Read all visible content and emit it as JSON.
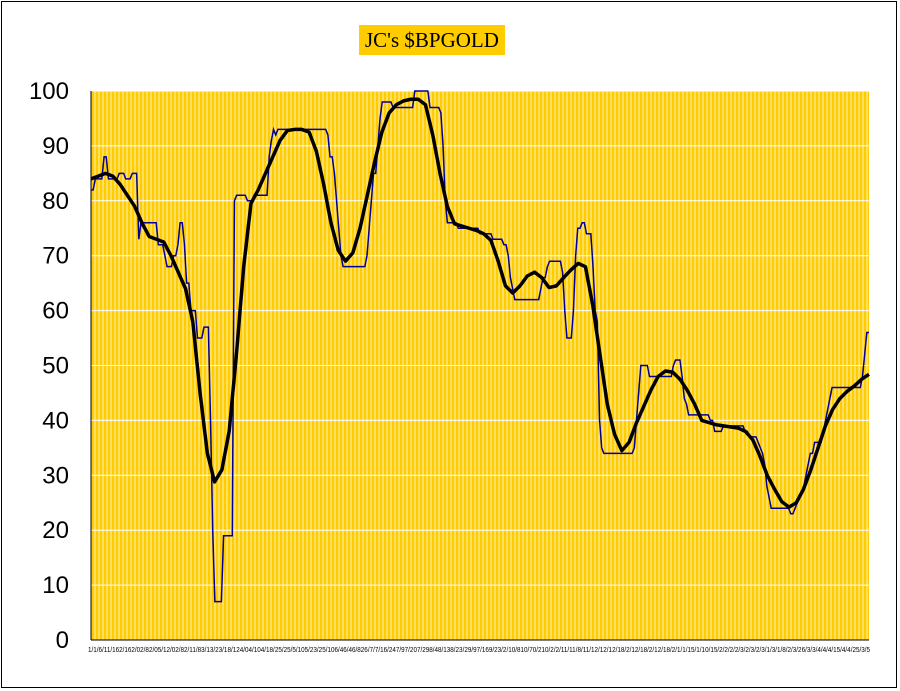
{
  "chart_data": {
    "type": "line",
    "title": "JC's $BPGOLD",
    "xlabel": "",
    "ylabel": "",
    "ylim": [
      0,
      100
    ],
    "yticks": [
      0,
      10,
      20,
      30,
      40,
      50,
      60,
      70,
      80,
      90,
      100
    ],
    "xtick_text": "1/1/6/11/162/162/02/82/05/12/02/82/11/83/13/23/18/124/04/104/18/25/25/5/105/23/25/106/46/46/826/7/7/16/247/97/207/298/48/138/23/29/97/169/23/2/10/810/70/210/2/2/11/11/8/11/12/12/12/18/2/12/18/2/12/18/2/1/1/15/1/10/15/2/2/2/2/3/2/3/2/3/1/3/1/8/2/3/26/3/3/4/4/4/15/4/4/25/3/5",
    "grid": true,
    "legend": "none",
    "colors": {
      "background": "#FFCC00",
      "gridline": "#FFFFFF",
      "raw_series": "#000099",
      "smooth_series": "#000000",
      "title_box": "#FFCC00"
    },
    "series": [
      {
        "kind": "raw",
        "values": [
          82,
          82,
          84,
          84,
          84,
          84,
          88,
          88,
          84,
          84,
          84,
          84,
          84,
          85,
          85,
          85,
          84,
          84,
          84,
          85,
          85,
          85,
          73,
          76,
          76,
          76,
          76,
          76,
          76,
          76,
          76,
          72,
          72,
          72,
          70,
          68,
          68,
          68,
          70,
          70,
          72,
          76,
          76,
          72,
          65,
          65,
          60,
          60,
          60,
          55,
          55,
          55,
          57,
          57,
          57,
          40,
          20,
          7,
          7,
          7,
          7,
          19,
          19,
          19,
          19,
          19,
          80,
          81,
          81,
          81,
          81,
          81,
          80,
          80,
          80,
          81,
          81,
          81,
          81,
          81,
          81,
          81,
          88,
          91,
          93,
          92,
          93,
          93,
          93,
          93,
          93,
          93,
          93,
          93,
          93,
          93,
          93,
          93,
          93,
          93,
          93,
          93,
          93,
          93,
          93,
          93,
          93,
          93,
          93,
          92,
          88,
          88,
          85,
          80,
          75,
          70,
          68,
          68,
          68,
          68,
          68,
          68,
          68,
          68,
          68,
          68,
          68,
          70,
          75,
          80,
          85,
          85,
          90,
          95,
          98,
          98,
          98,
          98,
          98,
          97,
          97,
          97,
          97,
          97,
          97,
          97,
          97,
          97,
          97,
          100,
          100,
          100,
          100,
          100,
          100,
          100,
          97,
          97,
          97,
          97,
          97,
          96,
          90,
          80,
          76,
          76,
          76,
          76,
          76,
          75,
          75,
          75,
          75,
          75,
          75,
          75,
          75,
          75,
          75,
          74,
          74,
          74,
          74,
          74,
          74,
          73,
          73,
          73,
          73,
          73,
          72,
          72,
          70,
          66,
          64,
          62,
          62,
          62,
          62,
          62,
          62,
          62,
          62,
          62,
          62,
          62,
          62,
          64,
          66,
          66,
          68,
          69,
          69,
          69,
          69,
          69,
          69,
          67,
          60,
          55,
          55,
          55,
          60,
          70,
          75,
          75,
          76,
          76,
          74,
          74,
          74,
          68,
          60,
          58,
          40,
          35,
          34,
          34,
          34,
          34,
          34,
          34,
          34,
          34,
          34,
          34,
          34,
          34,
          34,
          34,
          35,
          40,
          45,
          50,
          50,
          50,
          50,
          48,
          48,
          48,
          48,
          48,
          48,
          48,
          48,
          48,
          48,
          48,
          50,
          51,
          51,
          51,
          48,
          44,
          43,
          41,
          41,
          41,
          41,
          41,
          41,
          41,
          41,
          41,
          41,
          40,
          40,
          38,
          38,
          38,
          38,
          39,
          39,
          39,
          39,
          39,
          39,
          39,
          39,
          39,
          39,
          38,
          38,
          37,
          37,
          37,
          37,
          36,
          35,
          34,
          32,
          28,
          26,
          24,
          24,
          24,
          24,
          24,
          24,
          24,
          24,
          24,
          23,
          23,
          24,
          25,
          26,
          27,
          28,
          30,
          32,
          34,
          34,
          36,
          36,
          36,
          36,
          38,
          40,
          42,
          44,
          46,
          46,
          46,
          46,
          46,
          46,
          46,
          46,
          46,
          46,
          46,
          46,
          46,
          46,
          48,
          52,
          56,
          56
        ]
      },
      {
        "kind": "smoothed",
        "values": [
          84,
          84.5,
          85,
          84.5,
          83,
          81,
          79,
          76,
          73.5,
          73,
          72.5,
          70,
          67,
          64,
          58,
          45,
          34,
          28.8,
          31,
          38,
          52,
          68,
          79.5,
          82,
          85,
          88,
          91,
          92.8,
          93,
          93,
          92.5,
          89,
          83,
          76,
          71,
          69,
          70.5,
          75,
          81,
          87,
          92.5,
          96,
          97.5,
          98.2,
          98.5,
          98.5,
          97.5,
          92,
          85,
          79,
          75.8,
          75.4,
          75,
          74.6,
          74,
          72.8,
          69,
          64.5,
          63.2,
          64.5,
          66.3,
          67,
          66,
          64.2,
          64.5,
          66,
          67.4,
          68.6,
          68,
          61,
          52,
          43,
          37.5,
          34.5,
          36,
          39.5,
          42.5,
          45.5,
          48,
          49,
          48.8,
          47.5,
          45.5,
          43,
          40,
          39.6,
          39.2,
          39,
          38.8,
          38.6,
          38,
          36.5,
          33.5,
          30,
          27.5,
          25.2,
          24.2,
          25,
          27.5,
          31,
          35,
          39,
          42,
          44,
          45.3,
          46.3,
          47.5,
          48.4
        ]
      }
    ]
  }
}
